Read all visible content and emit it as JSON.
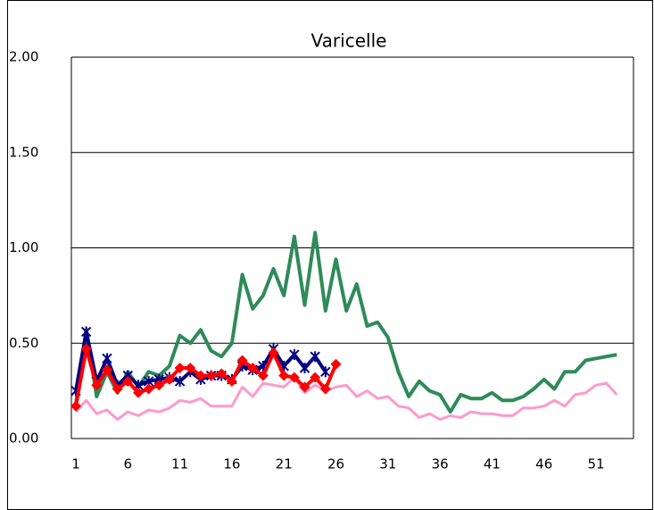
{
  "chart_data": {
    "type": "line",
    "title": "Varicelle",
    "categories": [
      "1",
      null,
      null,
      null,
      null,
      "6",
      null,
      null,
      null,
      null,
      "11",
      null,
      null,
      null,
      null,
      "16",
      null,
      null,
      null,
      null,
      "21",
      null,
      null,
      null,
      null,
      "26",
      null,
      null,
      null,
      null,
      "31",
      null,
      null,
      null,
      null,
      "36",
      null,
      null,
      null,
      null,
      "41",
      null,
      null,
      null,
      null,
      "46",
      null,
      null,
      null,
      null,
      "51",
      null,
      null
    ],
    "ylim": [
      0,
      2
    ],
    "yticks": [
      {
        "value": 0,
        "label": "0.00"
      },
      {
        "value": 0.5,
        "label": "0.50"
      },
      {
        "value": 1,
        "label": "1.00"
      },
      {
        "value": 1.5,
        "label": "1.50"
      },
      {
        "value": 2,
        "label": "2.00"
      }
    ],
    "grid": true,
    "series": [
      {
        "color": "#2e8b57",
        "marker": "none",
        "values": [
          0.18,
          0.57,
          0.22,
          0.35,
          0.24,
          0.35,
          0.27,
          0.35,
          0.33,
          0.38,
          0.54,
          0.5,
          0.57,
          0.46,
          0.43,
          0.5,
          0.86,
          0.68,
          0.75,
          0.89,
          0.75,
          1.06,
          0.7,
          1.08,
          0.67,
          0.94,
          0.67,
          0.81,
          0.59,
          0.61,
          0.53,
          0.35,
          0.22,
          0.3,
          0.25,
          0.23,
          0.14,
          0.23,
          0.21,
          0.21,
          0.24,
          0.2,
          0.2,
          0.22,
          0.26,
          0.31,
          0.26,
          0.35,
          0.35,
          0.41,
          0.42,
          0.43,
          0.44
        ]
      },
      {
        "color": "#ff99cc",
        "marker": "none",
        "values": [
          0.14,
          0.2,
          0.13,
          0.15,
          0.1,
          0.14,
          0.12,
          0.15,
          0.14,
          0.16,
          0.2,
          0.19,
          0.21,
          0.17,
          0.17,
          0.17,
          0.27,
          0.22,
          0.29,
          0.28,
          0.27,
          0.32,
          0.24,
          0.28,
          0.25,
          0.27,
          0.28,
          0.22,
          0.25,
          0.21,
          0.22,
          0.17,
          0.16,
          0.11,
          0.13,
          0.1,
          0.12,
          0.11,
          0.14,
          0.13,
          0.13,
          0.12,
          0.12,
          0.16,
          0.16,
          0.17,
          0.2,
          0.17,
          0.23,
          0.24,
          0.28,
          0.29,
          0.23
        ]
      },
      {
        "color": "#000080",
        "marker": "star",
        "values": [
          0.25,
          0.56,
          0.3,
          0.42,
          0.28,
          0.33,
          0.28,
          0.3,
          0.31,
          0.32,
          0.3,
          0.35,
          0.31,
          0.33,
          0.33,
          0.31,
          0.38,
          0.36,
          0.38,
          0.47,
          0.38,
          0.44,
          0.37,
          0.43,
          0.35,
          null,
          null,
          null,
          null,
          null,
          null,
          null,
          null,
          null,
          null,
          null,
          null,
          null,
          null,
          null,
          null,
          null,
          null,
          null,
          null,
          null,
          null,
          null,
          null,
          null,
          null,
          null,
          null
        ]
      },
      {
        "color": "#ff0000",
        "marker": "diamond",
        "values": [
          0.17,
          0.47,
          0.28,
          0.36,
          0.26,
          0.3,
          0.24,
          0.26,
          0.28,
          0.31,
          0.37,
          0.37,
          0.33,
          0.33,
          0.34,
          0.3,
          0.41,
          0.37,
          0.33,
          0.45,
          0.33,
          0.32,
          0.27,
          0.32,
          0.26,
          0.39,
          null,
          null,
          null,
          null,
          null,
          null,
          null,
          null,
          null,
          null,
          null,
          null,
          null,
          null,
          null,
          null,
          null,
          null,
          null,
          null,
          null,
          null,
          null,
          null,
          null,
          null,
          null
        ]
      }
    ]
  }
}
